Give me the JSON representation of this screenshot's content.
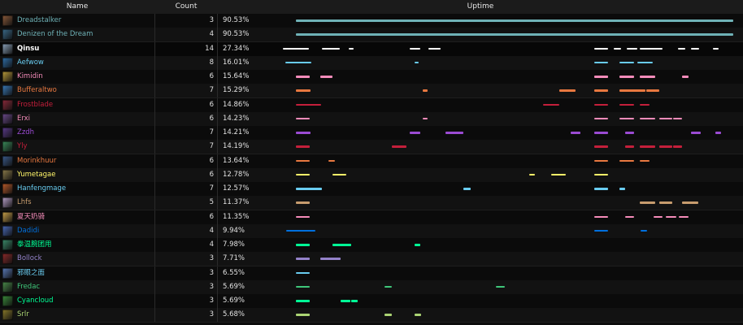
{
  "header": {
    "name": "Name",
    "count": "Count",
    "uptime": "Uptime"
  },
  "rows": [
    {
      "name": "Dreadstalker",
      "count": "3",
      "pct": "90.53%",
      "color": "#6fb2b7",
      "icon": "demon-icon",
      "iconColor": "#8a5a3a",
      "segments": [
        [
          0.0,
          1.0
        ]
      ]
    },
    {
      "name": "Denizen of the Dream",
      "count": "4",
      "pct": "90.53%",
      "color": "#6fb2b7",
      "icon": "owl-icon",
      "iconColor": "#3a6a8a",
      "segments": [
        [
          0.0,
          1.0
        ]
      ]
    },
    {
      "name": "Qinsu",
      "count": "14",
      "pct": "27.34%",
      "color": "#ffffff",
      "icon": "priest-icon",
      "iconColor": "#8aa0b8",
      "selected": true,
      "segments": [
        [
          -0.03,
          0.03
        ],
        [
          0.06,
          0.1
        ],
        [
          0.12,
          0.132
        ],
        [
          0.261,
          0.284
        ],
        [
          0.303,
          0.331
        ],
        [
          0.682,
          0.714
        ],
        [
          0.727,
          0.743
        ],
        [
          0.757,
          0.78
        ],
        [
          0.787,
          0.839
        ],
        [
          0.874,
          0.89
        ],
        [
          0.904,
          0.922
        ],
        [
          0.953,
          0.967
        ]
      ]
    },
    {
      "name": "Aefwow",
      "count": "8",
      "pct": "16.01%",
      "color": "#69ccf0",
      "icon": "mage-icon",
      "iconColor": "#2f6fa8",
      "segments": [
        [
          -0.025,
          0.035
        ],
        [
          0.271,
          0.28
        ],
        [
          0.682,
          0.714
        ],
        [
          0.739,
          0.773
        ],
        [
          0.78,
          0.816
        ]
      ]
    },
    {
      "name": "Kimidin",
      "count": "6",
      "pct": "15.64%",
      "color": "#f58cba",
      "icon": "paladin-icon",
      "iconColor": "#b89a3a",
      "segments": [
        [
          0.0,
          0.031
        ],
        [
          0.055,
          0.083
        ],
        [
          0.682,
          0.714
        ],
        [
          0.739,
          0.773
        ],
        [
          0.787,
          0.822
        ],
        [
          0.883,
          0.898
        ]
      ]
    },
    {
      "name": "Bufferaltwo",
      "count": "7",
      "pct": "15.29%",
      "color": "#e87840",
      "icon": "shaman-icon",
      "iconColor": "#3a7ab8",
      "segments": [
        [
          0.0,
          0.033
        ],
        [
          0.29,
          0.302
        ],
        [
          0.603,
          0.64
        ],
        [
          0.682,
          0.714
        ],
        [
          0.739,
          0.8
        ],
        [
          0.802,
          0.83
        ]
      ]
    },
    {
      "name": "Frostblade",
      "count": "6",
      "pct": "14.86%",
      "color": "#c41f3b",
      "icon": "dk-icon",
      "iconColor": "#8a2a3a",
      "segments": [
        [
          0.0,
          0.058
        ],
        [
          0.565,
          0.603
        ],
        [
          0.682,
          0.714
        ],
        [
          0.739,
          0.773
        ],
        [
          0.787,
          0.809
        ]
      ]
    },
    {
      "name": "Erxi",
      "count": "6",
      "pct": "14.23%",
      "color": "#f58cba",
      "icon": "paladin-icon",
      "iconColor": "#6a4a8a",
      "segments": [
        [
          0.0,
          0.031
        ],
        [
          0.29,
          0.302
        ],
        [
          0.682,
          0.714
        ],
        [
          0.739,
          0.773
        ],
        [
          0.787,
          0.822
        ],
        [
          0.83,
          0.86
        ],
        [
          0.862,
          0.883
        ]
      ]
    },
    {
      "name": "Zzdh",
      "count": "7",
      "pct": "14.21%",
      "color": "#9b4bd3",
      "icon": "warlock-icon",
      "iconColor": "#5a3a8a",
      "segments": [
        [
          0.0,
          0.033
        ],
        [
          0.261,
          0.284
        ],
        [
          0.342,
          0.382
        ],
        [
          0.629,
          0.651
        ],
        [
          0.682,
          0.714
        ],
        [
          0.752,
          0.773
        ],
        [
          0.903,
          0.926
        ],
        [
          0.959,
          0.973
        ]
      ]
    },
    {
      "name": "Yly",
      "count": "7",
      "pct": "14.19%",
      "color": "#c41f3b",
      "icon": "dk-icon",
      "iconColor": "#3a8a5a",
      "segments": [
        [
          0.0,
          0.031
        ],
        [
          0.219,
          0.252
        ],
        [
          0.682,
          0.714
        ],
        [
          0.752,
          0.773
        ],
        [
          0.787,
          0.822
        ],
        [
          0.83,
          0.86
        ],
        [
          0.862,
          0.883
        ]
      ]
    },
    {
      "name": "Morinkhuur",
      "count": "6",
      "pct": "13.64%",
      "color": "#e87840",
      "icon": "monk-icon",
      "iconColor": "#3a5a8a",
      "segments": [
        [
          0.0,
          0.031
        ],
        [
          0.075,
          0.09
        ],
        [
          0.682,
          0.714
        ],
        [
          0.739,
          0.773
        ],
        [
          0.787,
          0.809
        ]
      ]
    },
    {
      "name": "Yumetagae",
      "count": "6",
      "pct": "12.78%",
      "color": "#fff569",
      "icon": "rogue-icon",
      "iconColor": "#8a7a4a",
      "segments": [
        [
          0.0,
          0.031
        ],
        [
          0.083,
          0.116
        ],
        [
          0.534,
          0.547
        ],
        [
          0.584,
          0.617
        ],
        [
          0.682,
          0.714
        ]
      ]
    },
    {
      "name": "Hanfengmage",
      "count": "7",
      "pct": "12.57%",
      "color": "#69ccf0",
      "icon": "mage-icon",
      "iconColor": "#b85a2a",
      "segments": [
        [
          0.0,
          0.059
        ],
        [
          0.382,
          0.4
        ],
        [
          0.682,
          0.714
        ],
        [
          0.739,
          0.752
        ]
      ]
    },
    {
      "name": "Lhfs",
      "count": "5",
      "pct": "11.37%",
      "color": "#c79c6e",
      "icon": "warrior-icon",
      "iconColor": "#b8a0c8",
      "segments": [
        [
          0.0,
          0.031
        ],
        [
          0.787,
          0.822
        ],
        [
          0.83,
          0.86
        ],
        [
          0.883,
          0.921
        ]
      ]
    },
    {
      "name": "夏天奶骑",
      "count": "6",
      "pct": "11.35%",
      "color": "#f58cba",
      "icon": "paladin-icon",
      "iconColor": "#c8a04a",
      "segments": [
        [
          0.0,
          0.031
        ],
        [
          0.682,
          0.714
        ],
        [
          0.752,
          0.773
        ],
        [
          0.817,
          0.838
        ],
        [
          0.845,
          0.87
        ],
        [
          0.876,
          0.898
        ]
      ]
    },
    {
      "name": "Dadidi",
      "count": "4",
      "pct": "9.94%",
      "color": "#0070de",
      "icon": "shaman-icon",
      "iconColor": "#4a6ab8",
      "segments": [
        [
          -0.022,
          0.045
        ],
        [
          0.682,
          0.714
        ],
        [
          0.789,
          0.803
        ]
      ]
    },
    {
      "name": "拳温腕团用",
      "count": "4",
      "pct": "7.98%",
      "color": "#00ff96",
      "icon": "monk-icon",
      "iconColor": "#3a8a6a",
      "segments": [
        [
          0.0,
          0.031
        ],
        [
          0.083,
          0.126
        ],
        [
          0.271,
          0.284
        ]
      ]
    },
    {
      "name": "Bollock",
      "count": "3",
      "pct": "7.71%",
      "color": "#9482c9",
      "icon": "warlock-icon",
      "iconColor": "#8a2a2a",
      "segments": [
        [
          0.0,
          0.031
        ],
        [
          0.055,
          0.103
        ]
      ]
    },
    {
      "name": "邪眼之面",
      "count": "3",
      "pct": "6.55%",
      "color": "#69ccf0",
      "icon": "mage-icon",
      "iconColor": "#5a7ab8",
      "segments": [
        [
          0.0,
          0.031
        ]
      ]
    },
    {
      "name": "Fredac",
      "count": "3",
      "pct": "5.69%",
      "color": "#3fc77a",
      "icon": "hunter-icon",
      "iconColor": "#4a8a4a",
      "segments": [
        [
          0.0,
          0.031
        ],
        [
          0.203,
          0.219
        ],
        [
          0.458,
          0.478
        ]
      ]
    },
    {
      "name": "Cyancloud",
      "count": "3",
      "pct": "5.69%",
      "color": "#00ff96",
      "icon": "monk-icon",
      "iconColor": "#3a8a3a",
      "segments": [
        [
          0.0,
          0.031
        ],
        [
          0.103,
          0.124
        ],
        [
          0.127,
          0.141
        ]
      ]
    },
    {
      "name": "Srlr",
      "count": "3",
      "pct": "5.68%",
      "color": "#abd473",
      "icon": "hunter-icon",
      "iconColor": "#8a7a2a",
      "segments": [
        [
          0.0,
          0.031
        ],
        [
          0.203,
          0.219
        ],
        [
          0.271,
          0.286
        ]
      ]
    }
  ]
}
